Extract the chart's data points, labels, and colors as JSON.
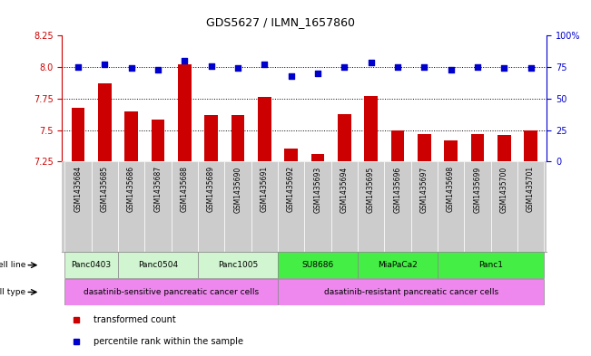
{
  "title": "GDS5627 / ILMN_1657860",
  "gsm_labels": [
    "GSM1435684",
    "GSM1435685",
    "GSM1435686",
    "GSM1435687",
    "GSM1435688",
    "GSM1435689",
    "GSM1435690",
    "GSM1435691",
    "GSM1435692",
    "GSM1435693",
    "GSM1435694",
    "GSM1435695",
    "GSM1435696",
    "GSM1435697",
    "GSM1435698",
    "GSM1435699",
    "GSM1435700",
    "GSM1435701"
  ],
  "red_values": [
    7.68,
    7.87,
    7.65,
    7.58,
    8.02,
    7.62,
    7.62,
    7.76,
    7.35,
    7.31,
    7.63,
    7.77,
    7.5,
    7.47,
    7.42,
    7.47,
    7.46,
    7.5
  ],
  "blue_values": [
    75,
    77,
    74,
    73,
    80,
    76,
    74,
    77,
    68,
    70,
    75,
    79,
    75,
    75,
    73,
    75,
    74,
    74
  ],
  "ylim_left": [
    7.25,
    8.25
  ],
  "ylim_right": [
    0,
    100
  ],
  "yticks_left": [
    7.25,
    7.5,
    7.75,
    8.0,
    8.25
  ],
  "yticks_right": [
    0,
    25,
    50,
    75,
    100
  ],
  "ytick_labels_right": [
    "0",
    "25",
    "50",
    "75",
    "100%"
  ],
  "cell_line_groups": [
    {
      "label": "Panc0403",
      "start": 0,
      "end": 2,
      "color": "#d0f5d0"
    },
    {
      "label": "Panc0504",
      "start": 2,
      "end": 5,
      "color": "#d0f5d0"
    },
    {
      "label": "Panc1005",
      "start": 5,
      "end": 8,
      "color": "#d0f5d0"
    },
    {
      "label": "SU8686",
      "start": 8,
      "end": 11,
      "color": "#44ee44"
    },
    {
      "label": "MiaPaCa2",
      "start": 11,
      "end": 14,
      "color": "#44ee44"
    },
    {
      "label": "Panc1",
      "start": 14,
      "end": 18,
      "color": "#44ee44"
    }
  ],
  "cell_type_groups": [
    {
      "label": "dasatinib-sensitive pancreatic cancer cells",
      "start": 0,
      "end": 8
    },
    {
      "label": "dasatinib-resistant pancreatic cancer cells",
      "start": 8,
      "end": 18
    }
  ],
  "cell_type_color": "#ee88ee",
  "bar_color": "#cc0000",
  "dot_color": "#0000cc",
  "axis_color_left": "#cc0000",
  "axis_color_right": "#0000cc",
  "gsm_bg_color": "#cccccc",
  "legend_items": [
    {
      "label": "transformed count",
      "color": "#cc0000"
    },
    {
      "label": "percentile rank within the sample",
      "color": "#0000cc"
    }
  ]
}
